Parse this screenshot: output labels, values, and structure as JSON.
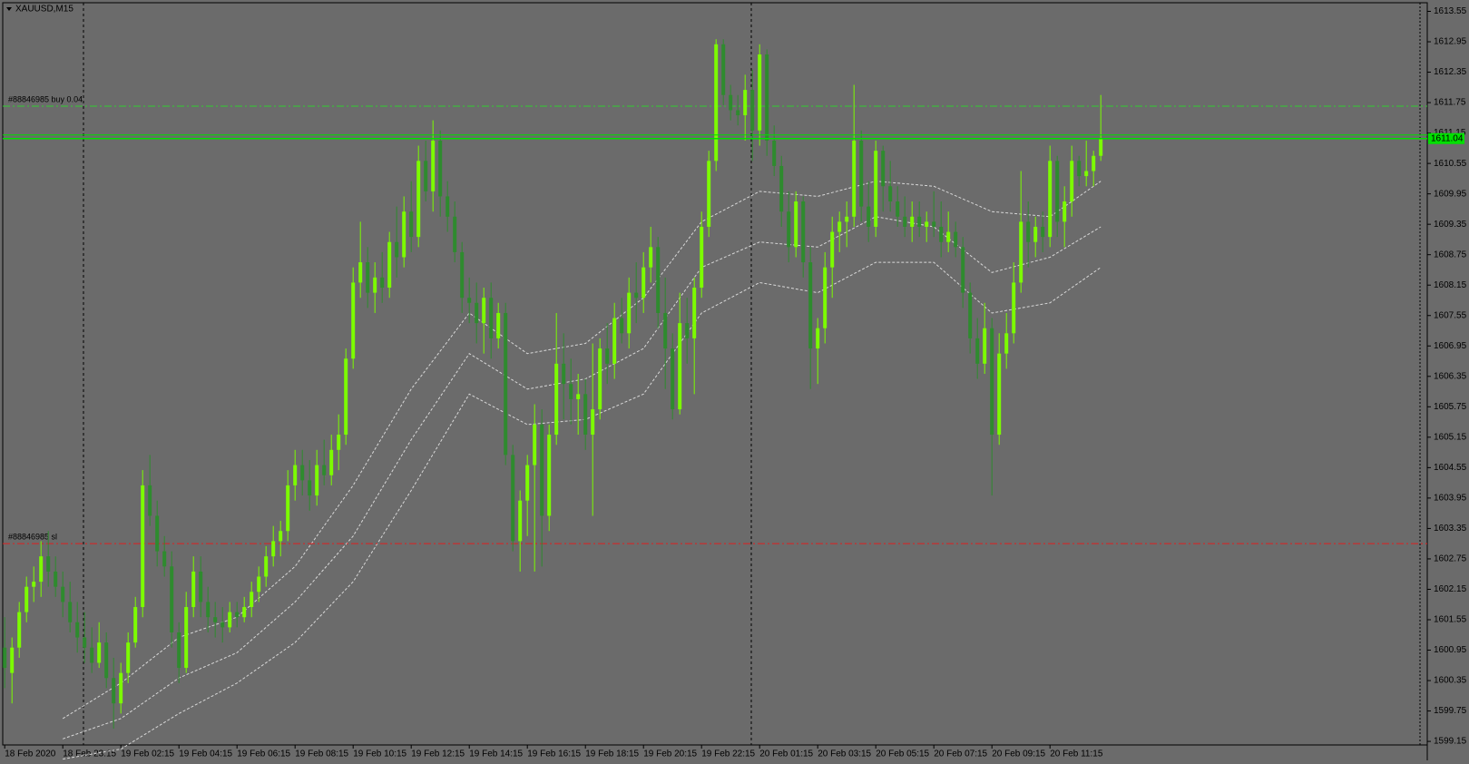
{
  "chart_data": {
    "type": "candlestick",
    "title": "XAUUSD,M15",
    "bull_color": "#7cfc00",
    "bear_color": "#2e8b2e",
    "ylim": [
      1599.08,
      1613.72
    ],
    "yticks": [
      1599.15,
      1599.75,
      1600.35,
      1600.95,
      1601.55,
      1602.15,
      1602.75,
      1603.35,
      1603.95,
      1604.55,
      1605.15,
      1605.75,
      1606.35,
      1606.95,
      1607.55,
      1608.15,
      1608.75,
      1609.35,
      1609.95,
      1610.55,
      1611.15,
      1611.75,
      1612.35,
      1612.95,
      1613.55
    ],
    "grid": false,
    "categories": [
      "18 Feb 2020",
      null,
      null,
      null,
      null,
      null,
      null,
      null,
      "18 Feb 23:15",
      null,
      null,
      null,
      null,
      null,
      null,
      null,
      "19 Feb 02:15",
      null,
      null,
      null,
      null,
      null,
      null,
      null,
      "19 Feb 04:15",
      null,
      null,
      null,
      null,
      null,
      null,
      null,
      "19 Feb 06:15",
      null,
      null,
      null,
      null,
      null,
      null,
      null,
      "19 Feb 08:15",
      null,
      null,
      null,
      null,
      null,
      null,
      null,
      "19 Feb 10:15",
      null,
      null,
      null,
      null,
      null,
      null,
      null,
      "19 Feb 12:15",
      null,
      null,
      null,
      null,
      null,
      null,
      null,
      "19 Feb 14:15",
      null,
      null,
      null,
      null,
      null,
      null,
      null,
      "19 Feb 16:15",
      null,
      null,
      null,
      null,
      null,
      null,
      null,
      "19 Feb 18:15",
      null,
      null,
      null,
      null,
      null,
      null,
      null,
      "19 Feb 20:15",
      null,
      null,
      null,
      null,
      null,
      null,
      null,
      "19 Feb 22:15",
      null,
      null,
      null,
      null,
      null,
      null,
      null,
      "20 Feb 01:15",
      null,
      null,
      null,
      null,
      null,
      null,
      null,
      "20 Feb 03:15",
      null,
      null,
      null,
      null,
      null,
      null,
      null,
      "20 Feb 05:15",
      null,
      null,
      null,
      null,
      null,
      null,
      null,
      "20 Feb 07:15",
      null,
      null,
      null,
      null,
      null,
      null,
      null,
      "20 Feb 09:15",
      null,
      null,
      null,
      null,
      null,
      null,
      null,
      "20 Feb 11:15",
      null,
      null,
      null,
      null,
      null,
      null,
      null
    ],
    "ohlc": [
      [
        1601.0,
        1601.6,
        1600.2,
        1600.6
      ],
      [
        1600.5,
        1601.2,
        1599.9,
        1601.0
      ],
      [
        1601.0,
        1601.9,
        1600.8,
        1601.7
      ],
      [
        1601.7,
        1602.4,
        1601.5,
        1602.2
      ],
      [
        1602.2,
        1602.6,
        1601.9,
        1602.3
      ],
      [
        1602.3,
        1603.1,
        1602.0,
        1602.8
      ],
      [
        1602.8,
        1603.3,
        1602.2,
        1602.5
      ],
      [
        1602.5,
        1602.8,
        1602.0,
        1602.2
      ],
      [
        1602.2,
        1602.5,
        1601.6,
        1601.9
      ],
      [
        1601.9,
        1602.3,
        1601.3,
        1601.5
      ],
      [
        1601.5,
        1601.9,
        1600.9,
        1601.2
      ],
      [
        1601.2,
        1601.7,
        1600.7,
        1601.0
      ],
      [
        1601.0,
        1601.4,
        1600.5,
        1600.7
      ],
      [
        1600.7,
        1601.5,
        1600.6,
        1601.1
      ],
      [
        1601.1,
        1601.3,
        1600.2,
        1600.4
      ],
      [
        1600.4,
        1600.8,
        1599.4,
        1599.9
      ],
      [
        1599.9,
        1600.7,
        1599.7,
        1600.5
      ],
      [
        1600.5,
        1601.3,
        1600.3,
        1601.1
      ],
      [
        1601.1,
        1602.0,
        1601.0,
        1601.8
      ],
      [
        1601.8,
        1604.5,
        1601.6,
        1604.2
      ],
      [
        1604.2,
        1604.8,
        1603.4,
        1603.6
      ],
      [
        1603.6,
        1603.9,
        1602.6,
        1602.9
      ],
      [
        1602.9,
        1603.2,
        1602.4,
        1602.6
      ],
      [
        1602.6,
        1602.9,
        1601.0,
        1601.3
      ],
      [
        1601.3,
        1601.5,
        1600.3,
        1600.6
      ],
      [
        1600.6,
        1602.1,
        1600.5,
        1601.8
      ],
      [
        1601.8,
        1602.8,
        1601.6,
        1602.5
      ],
      [
        1602.5,
        1602.8,
        1601.6,
        1601.9
      ],
      [
        1601.9,
        1602.2,
        1601.3,
        1601.6
      ],
      [
        1601.6,
        1601.9,
        1601.2,
        1601.5
      ],
      [
        1601.5,
        1601.8,
        1601.1,
        1601.4
      ],
      [
        1601.4,
        1601.9,
        1601.3,
        1601.7
      ],
      [
        1601.7,
        1601.9,
        1601.4,
        1601.6
      ],
      [
        1601.6,
        1602.0,
        1601.5,
        1601.8
      ],
      [
        1601.8,
        1602.3,
        1601.6,
        1602.1
      ],
      [
        1602.1,
        1602.6,
        1601.9,
        1602.4
      ],
      [
        1602.4,
        1603.0,
        1602.2,
        1602.8
      ],
      [
        1602.8,
        1603.4,
        1602.6,
        1603.1
      ],
      [
        1603.1,
        1603.5,
        1602.8,
        1603.3
      ],
      [
        1603.3,
        1604.5,
        1603.1,
        1604.2
      ],
      [
        1604.2,
        1604.9,
        1603.9,
        1604.6
      ],
      [
        1604.6,
        1604.9,
        1604.0,
        1604.3
      ],
      [
        1604.3,
        1604.7,
        1603.7,
        1604.0
      ],
      [
        1604.0,
        1604.9,
        1603.8,
        1604.6
      ],
      [
        1604.6,
        1605.1,
        1604.2,
        1604.4
      ],
      [
        1604.4,
        1605.2,
        1604.2,
        1604.9
      ],
      [
        1604.9,
        1605.6,
        1604.5,
        1605.2
      ],
      [
        1605.2,
        1606.9,
        1605.0,
        1606.7
      ],
      [
        1606.7,
        1608.5,
        1606.5,
        1608.2
      ],
      [
        1608.2,
        1609.4,
        1607.9,
        1608.6
      ],
      [
        1608.6,
        1608.9,
        1607.7,
        1608.0
      ],
      [
        1608.0,
        1608.6,
        1607.6,
        1608.3
      ],
      [
        1608.3,
        1608.8,
        1607.8,
        1608.1
      ],
      [
        1608.1,
        1609.2,
        1607.9,
        1609.0
      ],
      [
        1609.0,
        1609.7,
        1608.3,
        1608.7
      ],
      [
        1608.7,
        1609.9,
        1608.5,
        1609.6
      ],
      [
        1609.6,
        1610.2,
        1608.8,
        1609.1
      ],
      [
        1609.1,
        1610.9,
        1608.9,
        1610.6
      ],
      [
        1610.6,
        1611.0,
        1609.8,
        1610.0
      ],
      [
        1610.0,
        1611.4,
        1609.6,
        1611.0
      ],
      [
        1611.0,
        1611.2,
        1609.5,
        1609.9
      ],
      [
        1609.9,
        1610.2,
        1609.2,
        1609.5
      ],
      [
        1609.5,
        1609.8,
        1608.6,
        1608.8
      ],
      [
        1608.8,
        1609.0,
        1607.6,
        1607.9
      ],
      [
        1607.9,
        1608.3,
        1607.4,
        1607.8
      ],
      [
        1607.8,
        1608.2,
        1607.0,
        1607.4
      ],
      [
        1607.4,
        1608.1,
        1606.8,
        1607.9
      ],
      [
        1607.9,
        1608.2,
        1606.7,
        1607.1
      ],
      [
        1607.1,
        1607.8,
        1606.9,
        1607.6
      ],
      [
        1607.6,
        1607.8,
        1604.6,
        1604.8
      ],
      [
        1604.8,
        1605.0,
        1602.9,
        1603.1
      ],
      [
        1603.1,
        1604.1,
        1602.5,
        1603.9
      ],
      [
        1603.9,
        1604.8,
        1603.2,
        1604.6
      ],
      [
        1604.6,
        1605.8,
        1602.5,
        1605.4
      ],
      [
        1605.4,
        1605.7,
        1602.6,
        1603.6
      ],
      [
        1603.6,
        1605.4,
        1603.3,
        1605.2
      ],
      [
        1605.2,
        1607.6,
        1605.0,
        1606.6
      ],
      [
        1606.6,
        1607.2,
        1605.5,
        1606.2
      ],
      [
        1606.2,
        1606.7,
        1605.4,
        1605.9
      ],
      [
        1605.9,
        1606.4,
        1605.2,
        1606.0
      ],
      [
        1606.0,
        1606.3,
        1604.9,
        1605.2
      ],
      [
        1605.2,
        1607.0,
        1603.6,
        1605.7
      ],
      [
        1605.7,
        1607.1,
        1605.5,
        1606.9
      ],
      [
        1606.9,
        1607.4,
        1606.2,
        1606.6
      ],
      [
        1606.6,
        1607.8,
        1606.3,
        1607.5
      ],
      [
        1607.5,
        1607.9,
        1607.0,
        1607.2
      ],
      [
        1607.2,
        1608.3,
        1606.9,
        1608.0
      ],
      [
        1608.0,
        1608.6,
        1607.4,
        1607.9
      ],
      [
        1607.9,
        1608.8,
        1607.6,
        1608.5
      ],
      [
        1608.5,
        1609.3,
        1608.2,
        1608.9
      ],
      [
        1608.9,
        1609.1,
        1607.3,
        1607.6
      ],
      [
        1607.6,
        1608.3,
        1606.1,
        1606.9
      ],
      [
        1606.9,
        1607.2,
        1605.5,
        1605.7
      ],
      [
        1605.7,
        1608.0,
        1605.6,
        1607.4
      ],
      [
        1607.4,
        1607.9,
        1606.6,
        1607.1
      ],
      [
        1607.1,
        1608.3,
        1606.0,
        1608.1
      ],
      [
        1608.1,
        1609.6,
        1607.9,
        1609.3
      ],
      [
        1609.3,
        1610.8,
        1609.1,
        1610.6
      ],
      [
        1610.6,
        1613.0,
        1610.4,
        1612.9
      ],
      [
        1612.9,
        1613.0,
        1611.7,
        1611.9
      ],
      [
        1611.9,
        1612.1,
        1611.4,
        1611.6
      ],
      [
        1611.6,
        1611.9,
        1611.3,
        1611.5
      ],
      [
        1611.5,
        1612.3,
        1611.0,
        1612.0
      ],
      [
        1612.0,
        1612.4,
        1610.6,
        1611.2
      ],
      [
        1611.2,
        1612.9,
        1610.9,
        1612.7
      ],
      [
        1612.7,
        1612.8,
        1610.7,
        1611.0
      ],
      [
        1611.0,
        1611.3,
        1610.3,
        1610.5
      ],
      [
        1610.5,
        1610.7,
        1609.3,
        1609.6
      ],
      [
        1609.6,
        1610.0,
        1608.6,
        1608.9
      ],
      [
        1608.9,
        1610.0,
        1608.7,
        1609.8
      ],
      [
        1609.8,
        1609.9,
        1608.3,
        1608.6
      ],
      [
        1608.6,
        1608.9,
        1606.1,
        1606.9
      ],
      [
        1606.9,
        1607.5,
        1606.2,
        1607.3
      ],
      [
        1607.3,
        1608.8,
        1607.0,
        1608.5
      ],
      [
        1608.5,
        1609.5,
        1607.9,
        1609.2
      ],
      [
        1609.2,
        1609.6,
        1608.8,
        1609.4
      ],
      [
        1609.4,
        1609.8,
        1608.9,
        1609.5
      ],
      [
        1609.5,
        1612.1,
        1609.3,
        1611.0
      ],
      [
        1611.0,
        1611.2,
        1609.4,
        1609.7
      ],
      [
        1609.7,
        1610.2,
        1609.0,
        1609.3
      ],
      [
        1609.3,
        1611.0,
        1609.1,
        1610.8
      ],
      [
        1610.8,
        1610.9,
        1609.6,
        1610.1
      ],
      [
        1610.1,
        1610.6,
        1609.6,
        1609.8
      ],
      [
        1609.8,
        1610.1,
        1609.3,
        1609.5
      ],
      [
        1609.5,
        1609.9,
        1609.1,
        1609.3
      ],
      [
        1609.3,
        1609.8,
        1609.0,
        1609.5
      ],
      [
        1609.5,
        1609.8,
        1609.1,
        1609.3
      ],
      [
        1609.3,
        1609.6,
        1609.0,
        1609.4
      ],
      [
        1609.4,
        1610.0,
        1609.1,
        1609.3
      ],
      [
        1609.3,
        1609.8,
        1608.7,
        1609.0
      ],
      [
        1609.0,
        1609.6,
        1608.8,
        1609.2
      ],
      [
        1609.2,
        1609.4,
        1608.7,
        1608.9
      ],
      [
        1608.9,
        1609.1,
        1607.7,
        1608.0
      ],
      [
        1608.0,
        1608.2,
        1606.8,
        1607.1
      ],
      [
        1607.1,
        1607.5,
        1606.3,
        1606.6
      ],
      [
        1606.6,
        1607.8,
        1606.4,
        1607.3
      ],
      [
        1607.3,
        1607.5,
        1604.0,
        1605.2
      ],
      [
        1605.2,
        1607.2,
        1605.0,
        1606.8
      ],
      [
        1606.8,
        1607.6,
        1606.5,
        1607.2
      ],
      [
        1607.2,
        1608.6,
        1607.0,
        1608.2
      ],
      [
        1608.2,
        1610.4,
        1608.0,
        1609.4
      ],
      [
        1609.4,
        1609.8,
        1608.5,
        1609.0
      ],
      [
        1609.0,
        1609.5,
        1608.7,
        1609.3
      ],
      [
        1609.3,
        1609.6,
        1608.8,
        1609.1
      ],
      [
        1609.1,
        1610.9,
        1608.9,
        1610.6
      ],
      [
        1610.6,
        1610.7,
        1609.1,
        1609.4
      ],
      [
        1609.4,
        1610.1,
        1608.9,
        1609.8
      ],
      [
        1609.8,
        1610.9,
        1609.5,
        1610.6
      ],
      [
        1610.6,
        1610.7,
        1610.1,
        1610.3
      ],
      [
        1610.3,
        1611.0,
        1610.1,
        1610.4
      ],
      [
        1610.4,
        1610.8,
        1610.1,
        1610.7
      ],
      [
        1610.7,
        1611.9,
        1610.6,
        1611.04
      ]
    ],
    "bands": {
      "color": "#d8d8d8",
      "x": [
        8,
        16,
        24,
        32,
        40,
        48,
        56,
        64,
        72,
        80,
        88,
        96,
        104,
        112,
        120,
        128,
        136,
        144,
        151
      ],
      "upper": [
        1599.6,
        1600.3,
        1601.2,
        1601.6,
        1602.6,
        1604.2,
        1606.1,
        1607.6,
        1606.8,
        1607.0,
        1607.9,
        1609.4,
        1610.0,
        1609.9,
        1610.2,
        1610.1,
        1609.6,
        1609.5,
        1610.2
      ],
      "middle": [
        1599.2,
        1599.6,
        1600.4,
        1600.9,
        1601.9,
        1603.2,
        1605.1,
        1606.8,
        1606.1,
        1606.3,
        1606.9,
        1608.5,
        1609.0,
        1608.9,
        1609.5,
        1609.3,
        1608.4,
        1608.7,
        1609.3
      ],
      "lower": [
        1598.8,
        1599.0,
        1599.7,
        1600.3,
        1601.1,
        1602.3,
        1604.1,
        1606.0,
        1605.4,
        1605.5,
        1606.0,
        1607.6,
        1608.2,
        1608.0,
        1608.6,
        1608.6,
        1607.6,
        1607.8,
        1608.5
      ]
    },
    "levels": [
      {
        "label": "#88846985 buy 0.04",
        "value": 1611.68,
        "color": "#32cd32"
      },
      {
        "label": "#88846985 sl",
        "value": 1603.05,
        "color": "#e02020"
      }
    ],
    "last_price": 1611.04,
    "last_price_color": "#00e000"
  }
}
